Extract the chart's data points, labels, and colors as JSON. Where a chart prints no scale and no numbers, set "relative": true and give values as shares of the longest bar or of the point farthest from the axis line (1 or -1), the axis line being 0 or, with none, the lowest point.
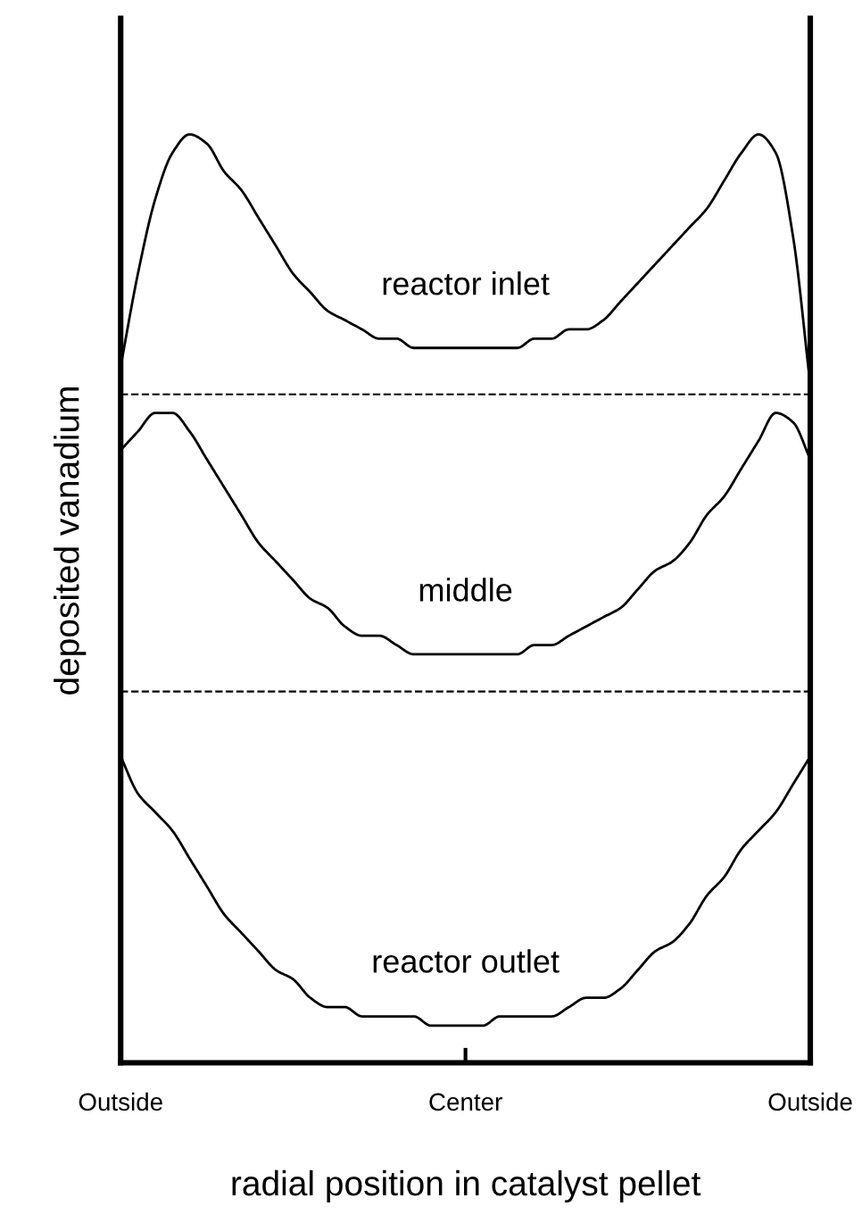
{
  "chart_data": {
    "type": "line",
    "relative": true,
    "xlabel": "radial position in catalyst pellet",
    "ylabel": "deposited vanadium",
    "categories": [
      "Outside",
      null,
      null,
      null,
      null,
      null,
      null,
      null,
      null,
      null,
      null,
      null,
      null,
      null,
      null,
      null,
      null,
      null,
      null,
      null,
      "Center",
      null,
      null,
      null,
      null,
      null,
      null,
      null,
      null,
      null,
      null,
      null,
      null,
      null,
      null,
      null,
      null,
      null,
      null,
      null,
      "Outside"
    ],
    "series": [
      {
        "name": "reactor inlet",
        "color": "#000000",
        "values": [
          0.75,
          0.85,
          0.93,
          0.98,
          1,
          0.99,
          0.96,
          0.94,
          0.91,
          0.88,
          0.85,
          0.83,
          0.81,
          0.8,
          0.79,
          0.78,
          0.78,
          0.77,
          0.77,
          0.77,
          0.77,
          0.77,
          0.77,
          0.77,
          0.78,
          0.78,
          0.79,
          0.79,
          0.8,
          0.82,
          0.84,
          0.86,
          0.88,
          0.9,
          0.92,
          0.95,
          0.98,
          1,
          0.98,
          0.89,
          0.73
        ]
      },
      {
        "name": "middle",
        "color": "#000000",
        "values": [
          0.66,
          0.68,
          0.7,
          0.7,
          0.68,
          0.65,
          0.62,
          0.59,
          0.56,
          0.54,
          0.52,
          0.5,
          0.49,
          0.47,
          0.46,
          0.46,
          0.45,
          0.44,
          0.44,
          0.44,
          0.44,
          0.44,
          0.44,
          0.44,
          0.45,
          0.45,
          0.46,
          0.47,
          0.48,
          0.49,
          0.51,
          0.53,
          0.54,
          0.56,
          0.59,
          0.61,
          0.64,
          0.67,
          0.7,
          0.69,
          0.65
        ]
      },
      {
        "name": "reactor outlet",
        "color": "#000000",
        "values": [
          0.33,
          0.29,
          0.27,
          0.25,
          0.22,
          0.19,
          0.16,
          0.14,
          0.12,
          0.1,
          0.09,
          0.07,
          0.06,
          0.06,
          0.05,
          0.05,
          0.05,
          0.05,
          0.04,
          0.04,
          0.04,
          0.04,
          0.05,
          0.05,
          0.05,
          0.05,
          0.06,
          0.07,
          0.07,
          0.08,
          0.1,
          0.12,
          0.13,
          0.15,
          0.18,
          0.2,
          0.23,
          0.25,
          0.27,
          0.3,
          0.33
        ]
      }
    ],
    "ref_lines": [
      {
        "axis": "y",
        "value": 0.72,
        "label": null,
        "color": "#000000",
        "line_style": "dashed"
      },
      {
        "axis": "y",
        "value": 0.4,
        "label": null,
        "color": "#000000",
        "line_style": "dashed"
      }
    ],
    "grid": false,
    "legend": false,
    "marker": "none",
    "line_style": "solid"
  }
}
